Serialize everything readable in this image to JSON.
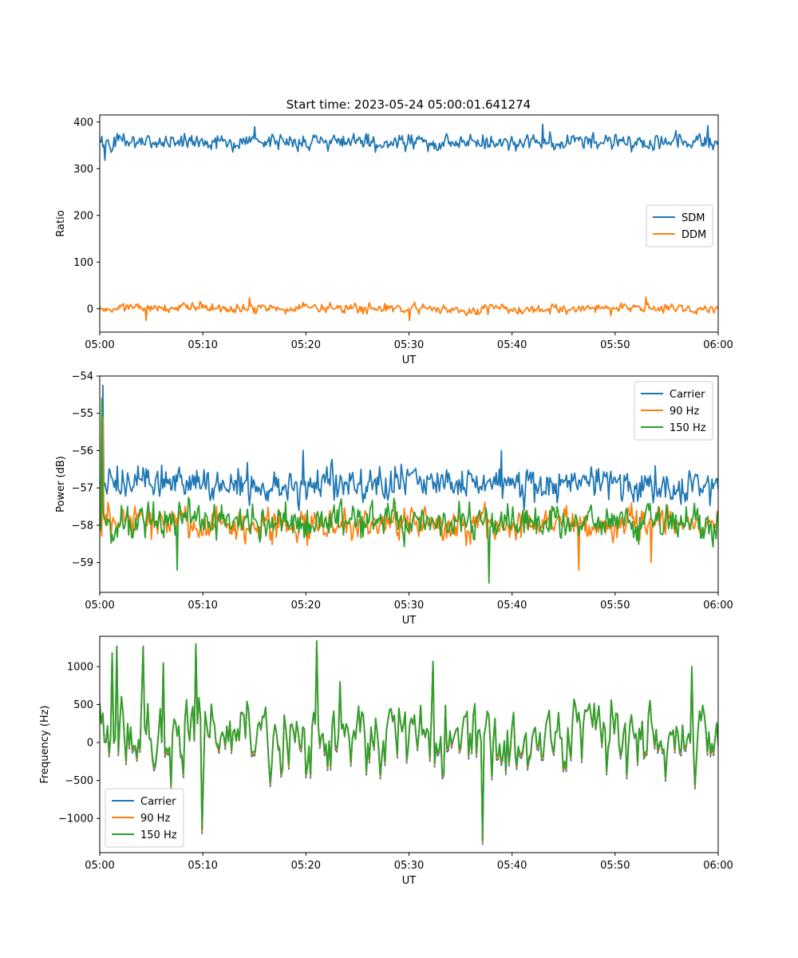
{
  "figure": {
    "title": "Start time: 2023-05-24 05:00:01.641274"
  },
  "chart_data": [
    {
      "type": "line",
      "title": "Start time: 2023-05-24 05:00:01.641274",
      "xlabel": "UT",
      "ylabel": "Ratio",
      "x_ticks": [
        "05:00",
        "05:10",
        "05:20",
        "05:30",
        "05:40",
        "05:50",
        "06:00"
      ],
      "y_ticks": [
        0,
        100,
        200,
        300,
        400
      ],
      "xlim": [
        "05:00",
        "06:00"
      ],
      "ylim": [
        -50,
        415
      ],
      "legend_position": "center-right",
      "grid": false,
      "n_points": 600,
      "series": [
        {
          "name": "SDM",
          "color": "#1f77b4",
          "mean": 358,
          "spread": 12,
          "extremes": [
            {
              "x_min": 0.5,
              "y": 318
            },
            {
              "x_min": 15,
              "y": 390
            },
            {
              "x_min": 43,
              "y": 395
            },
            {
              "x_min": 59,
              "y": 392
            }
          ]
        },
        {
          "name": "DDM",
          "color": "#ff7f0e",
          "mean": 0,
          "spread": 7,
          "extremes": [
            {
              "x_min": 4.5,
              "y": -25
            },
            {
              "x_min": 14.5,
              "y": 24
            },
            {
              "x_min": 30,
              "y": -25
            },
            {
              "x_min": 53,
              "y": 25
            }
          ]
        }
      ]
    },
    {
      "type": "line",
      "title": "",
      "xlabel": "UT",
      "ylabel": "Power (dB)",
      "x_ticks": [
        "05:00",
        "05:10",
        "05:20",
        "05:30",
        "05:40",
        "05:50",
        "06:00"
      ],
      "y_ticks": [
        -54,
        -55,
        -56,
        -57,
        -58,
        -59
      ],
      "xlim": [
        "05:00",
        "06:00"
      ],
      "ylim": [
        -59.8,
        -54.0
      ],
      "legend_position": "top-right",
      "grid": false,
      "n_points": 600,
      "series": [
        {
          "name": "Carrier",
          "color": "#1f77b4",
          "mean": -56.9,
          "spread": 0.3,
          "extremes": [
            {
              "x_min": 0.35,
              "y": -54.25
            },
            {
              "x_min": 19.7,
              "y": -56.0
            },
            {
              "x_min": 39,
              "y": -56.0
            }
          ]
        },
        {
          "name": "90 Hz",
          "color": "#ff7f0e",
          "mean": -57.95,
          "spread": 0.28,
          "extremes": [
            {
              "x_min": 0.3,
              "y": -55.1
            },
            {
              "x_min": 46.5,
              "y": -59.2
            },
            {
              "x_min": 53.5,
              "y": -59.0
            }
          ]
        },
        {
          "name": "150 Hz",
          "color": "#2ca02c",
          "mean": -57.9,
          "spread": 0.3,
          "extremes": [
            {
              "x_min": 0.25,
              "y": -54.6
            },
            {
              "x_min": 7.5,
              "y": -59.2
            },
            {
              "x_min": 37.8,
              "y": -59.55
            }
          ]
        }
      ]
    },
    {
      "type": "line",
      "title": "",
      "xlabel": "UT",
      "ylabel": "Frequency (Hz)",
      "x_ticks": [
        "05:00",
        "05:10",
        "05:20",
        "05:30",
        "05:40",
        "05:50",
        "06:00"
      ],
      "y_ticks": [
        1000,
        500,
        0,
        -500,
        -1000
      ],
      "xlim": [
        "05:00",
        "06:00"
      ],
      "ylim": [
        -1450,
        1400
      ],
      "legend_position": "bottom-left",
      "grid": false,
      "n_points": 400,
      "series": [
        {
          "name": "Carrier",
          "color": "#1f77b4",
          "offset": -30
        },
        {
          "name": "90 Hz",
          "color": "#ff7f0e",
          "offset": -15
        },
        {
          "name": "150 Hz",
          "color": "#2ca02c",
          "offset": 0
        }
      ],
      "base_signal": {
        "mean": 80,
        "spread": 320,
        "extremes": [
          {
            "x_min": 1.2,
            "y": 1180
          },
          {
            "x_min": 1.7,
            "y": 1270
          },
          {
            "x_min": 4.2,
            "y": 1270
          },
          {
            "x_min": 6.1,
            "y": 1050
          },
          {
            "x_min": 9.3,
            "y": 1300
          },
          {
            "x_min": 9.9,
            "y": -1150
          },
          {
            "x_min": 21.1,
            "y": 1340
          },
          {
            "x_min": 37.1,
            "y": -1290
          },
          {
            "x_min": 23.3,
            "y": 800
          },
          {
            "x_min": 32.3,
            "y": 1070
          },
          {
            "x_min": 57.5,
            "y": 1000
          }
        ]
      }
    }
  ]
}
